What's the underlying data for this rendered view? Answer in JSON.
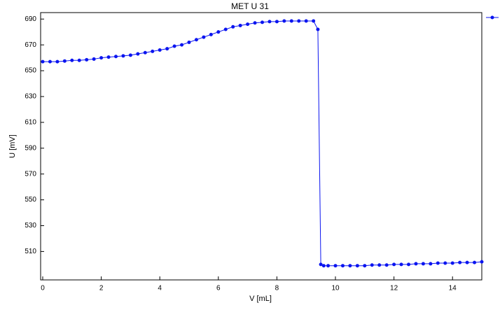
{
  "chart_data": {
    "type": "line",
    "title": "MET U 31",
    "xlabel": "V [mL]",
    "ylabel": "U [mV]",
    "x": [
      0,
      0.25,
      0.5,
      0.75,
      1,
      1.25,
      1.5,
      1.75,
      2,
      2.25,
      2.5,
      2.75,
      3,
      3.25,
      3.5,
      3.75,
      4,
      4.25,
      4.5,
      4.75,
      5,
      5.25,
      5.5,
      5.75,
      6,
      6.25,
      6.5,
      6.75,
      7,
      7.25,
      7.5,
      7.75,
      8,
      8.25,
      8.5,
      8.75,
      9,
      9.25,
      9.4,
      9.5,
      9.6,
      9.75,
      10,
      10.25,
      10.5,
      10.75,
      11,
      11.25,
      11.5,
      11.75,
      12,
      12.25,
      12.5,
      12.75,
      13,
      13.25,
      13.5,
      13.75,
      14,
      14.25,
      14.5,
      14.75,
      15
    ],
    "series": [
      {
        "color": "#0a14f0",
        "values": [
          657,
          657,
          657,
          657.5,
          658,
          658,
          658.5,
          659,
          660,
          660.5,
          661,
          661.5,
          662,
          663,
          664,
          665,
          666,
          667,
          669,
          670,
          672,
          674,
          676,
          678,
          680,
          682,
          684,
          685,
          686,
          687,
          687.5,
          688,
          688,
          688.5,
          688.5,
          688.5,
          688.5,
          688.5,
          682,
          500,
          499,
          499,
          499,
          499,
          499,
          499,
          499,
          499.5,
          499.5,
          499.5,
          500,
          500,
          500,
          500.5,
          500.5,
          500.5,
          501,
          501,
          501,
          501.5,
          501.5,
          501.5,
          502
        ]
      }
    ],
    "xlim": [
      0,
      15
    ],
    "xticks": [
      0,
      2,
      4,
      6,
      8,
      10,
      12,
      14
    ],
    "ylim": [
      488,
      695
    ],
    "yticks": [
      510,
      530,
      550,
      570,
      590,
      610,
      630,
      650,
      670,
      690
    ],
    "grid": false
  }
}
